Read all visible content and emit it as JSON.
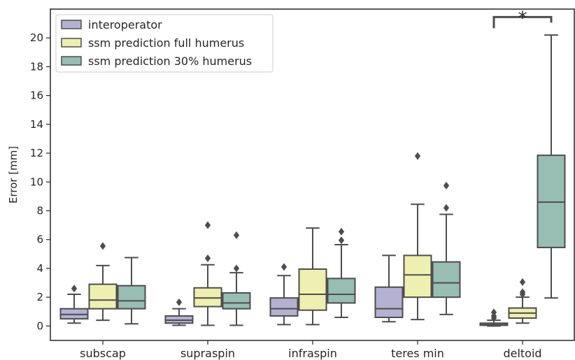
{
  "chart_data": {
    "type": "boxplot",
    "title": "",
    "xlabel": "",
    "ylabel": "Error [mm]",
    "ylim": [
      -1,
      22
    ],
    "yticks": [
      0,
      2,
      4,
      6,
      8,
      10,
      12,
      14,
      16,
      18,
      20
    ],
    "categories": [
      "subscap",
      "supraspin",
      "infraspin",
      "teres min",
      "deltoid"
    ],
    "legend_position": "top-left",
    "grid": false,
    "series": [
      {
        "name": "interoperator",
        "color": "#b4b1d2",
        "boxes": [
          {
            "whisker_low": 0.2,
            "q1": 0.5,
            "median": 0.8,
            "q3": 1.2,
            "whisker_high": 2.2,
            "outliers": [
              2.6
            ]
          },
          {
            "whisker_low": 0.05,
            "q1": 0.2,
            "median": 0.4,
            "q3": 0.7,
            "whisker_high": 1.2,
            "outliers": [
              1.65
            ]
          },
          {
            "whisker_low": 0.1,
            "q1": 0.7,
            "median": 1.2,
            "q3": 1.95,
            "whisker_high": 3.5,
            "outliers": [
              4.1
            ]
          },
          {
            "whisker_low": 0.3,
            "q1": 0.6,
            "median": 1.2,
            "q3": 2.7,
            "whisker_high": 4.9,
            "outliers": []
          },
          {
            "whisker_low": 0.0,
            "q1": 0.05,
            "median": 0.1,
            "q3": 0.2,
            "whisker_high": 0.4,
            "outliers": [
              0.55,
              0.7,
              0.95
            ]
          }
        ]
      },
      {
        "name": "ssm prediction full humerus",
        "color": "#eef0b1",
        "boxes": [
          {
            "whisker_low": 0.4,
            "q1": 1.2,
            "median": 1.8,
            "q3": 2.9,
            "whisker_high": 4.2,
            "outliers": [
              5.55
            ]
          },
          {
            "whisker_low": 0.05,
            "q1": 1.35,
            "median": 1.95,
            "q3": 2.65,
            "whisker_high": 4.25,
            "outliers": [
              4.7,
              7.0
            ]
          },
          {
            "whisker_low": 0.1,
            "q1": 1.1,
            "median": 2.2,
            "q3": 3.95,
            "whisker_high": 6.8,
            "outliers": []
          },
          {
            "whisker_low": 0.45,
            "q1": 2.0,
            "median": 3.55,
            "q3": 4.9,
            "whisker_high": 8.45,
            "outliers": [
              11.8
            ]
          },
          {
            "whisker_low": 0.2,
            "q1": 0.55,
            "median": 0.9,
            "q3": 1.25,
            "whisker_high": 2.0,
            "outliers": [
              2.2,
              2.35,
              3.05
            ]
          }
        ]
      },
      {
        "name": "ssm prediction 30% humerus",
        "color": "#98bdb2",
        "boxes": [
          {
            "whisker_low": 0.15,
            "q1": 1.2,
            "median": 1.75,
            "q3": 2.8,
            "whisker_high": 4.75,
            "outliers": []
          },
          {
            "whisker_low": 0.05,
            "q1": 1.2,
            "median": 1.6,
            "q3": 2.3,
            "whisker_high": 3.7,
            "outliers": [
              4.0,
              6.3
            ]
          },
          {
            "whisker_low": 0.6,
            "q1": 1.6,
            "median": 2.2,
            "q3": 3.3,
            "whisker_high": 5.65,
            "outliers": [
              5.95,
              6.55
            ]
          },
          {
            "whisker_low": 0.8,
            "q1": 2.0,
            "median": 3.0,
            "q3": 4.45,
            "whisker_high": 7.75,
            "outliers": [
              8.2,
              9.75
            ]
          },
          {
            "whisker_low": 1.95,
            "q1": 5.45,
            "median": 8.6,
            "q3": 11.85,
            "whisker_high": 20.2,
            "outliers": []
          }
        ]
      }
    ],
    "annotations": [
      {
        "text": "*",
        "category": "deltoid",
        "bracket_from_series": 0,
        "bracket_to_series": 2,
        "y": 21.45
      }
    ]
  }
}
